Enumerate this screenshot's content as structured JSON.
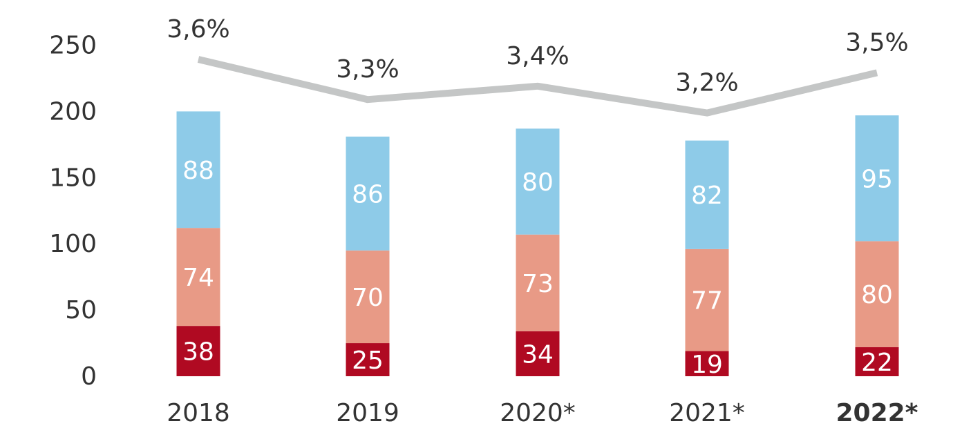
{
  "chart_data": {
    "type": "bar",
    "stacked": true,
    "categories": [
      "2018",
      "2019",
      "2020*",
      "2021*",
      "2022*"
    ],
    "category_bold": [
      false,
      false,
      false,
      false,
      true
    ],
    "ylim": [
      0,
      250
    ],
    "yticks": [
      0,
      50,
      100,
      150,
      200,
      250
    ],
    "ytick_labels": [
      "0",
      "50",
      "100",
      "150",
      "200",
      "250"
    ],
    "grid": false,
    "series": [
      {
        "values": [
          38,
          25,
          34,
          19,
          22
        ],
        "labels": [
          "38",
          "25",
          "34",
          "19",
          "22"
        ],
        "color": "#b00a22"
      },
      {
        "values": [
          74,
          70,
          73,
          77,
          80
        ],
        "labels": [
          "74",
          "70",
          "73",
          "77",
          "80"
        ],
        "color": "#e89a86"
      },
      {
        "values": [
          88,
          86,
          80,
          82,
          95
        ],
        "labels": [
          "88",
          "86",
          "80",
          "82",
          "95"
        ],
        "color": "#8ecbe8"
      }
    ],
    "line_series": {
      "values": [
        3.6,
        3.3,
        3.4,
        3.2,
        3.5
      ],
      "labels": [
        "3,6%",
        "3,3%",
        "3,4%",
        "3,2%",
        "3,5%"
      ],
      "color": "#c4c6c6"
    }
  }
}
